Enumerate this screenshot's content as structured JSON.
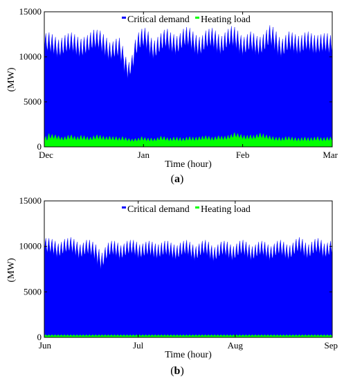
{
  "chart_data": [
    {
      "type": "area",
      "caption_open": "(",
      "caption_letter": "a",
      "caption_close": ")",
      "xlabel": "Time (hour)",
      "ylabel": "(MW)",
      "ylim": [
        0,
        15000
      ],
      "yticks": [
        0,
        5000,
        10000,
        15000
      ],
      "ytick_labels": [
        "0",
        "5000",
        "10000",
        "15000"
      ],
      "xlim": [
        0,
        2160
      ],
      "xticks": [
        0,
        744,
        1488,
        2160
      ],
      "xtick_labels": [
        "Dec",
        "Jan",
        "Feb",
        "Mar"
      ],
      "grid": false,
      "legend_placement": "top-center",
      "series": [
        {
          "name": "Critical demand",
          "color": "#0000ff",
          "daily_peak": [
            12600,
            12700,
            12500,
            12200,
            11900,
            12100,
            12400,
            12600,
            12700,
            12500,
            12200,
            12000,
            12200,
            12400,
            12700,
            13000,
            13000,
            12900,
            12500,
            12100,
            11600,
            11700,
            12000,
            12100,
            11200,
            10000,
            9400,
            10200,
            11900,
            12700,
            13100,
            13200,
            12800,
            12100,
            11800,
            12200,
            12600,
            13000,
            13100,
            12700,
            12500,
            12300,
            12600,
            13100,
            13300,
            13200,
            12800,
            12400,
            12200,
            12400,
            12900,
            13100,
            13200,
            12900,
            12500,
            12300,
            12700,
            13100,
            13400,
            13300,
            12900,
            12400,
            12200,
            12500,
            12800,
            12600,
            12300,
            12200,
            12500,
            13000,
            13500,
            13300,
            12800,
            12200,
            12000,
            12400,
            12800,
            12700,
            12500,
            12300,
            12400,
            12700,
            12800,
            12600,
            12400,
            12400,
            12500,
            12600,
            12600,
            12400
          ],
          "daily_trough": [
            10500,
            10600,
            10400,
            10200,
            9900,
            10000,
            10300,
            10500,
            10600,
            10400,
            10100,
            9900,
            10100,
            10300,
            10600,
            10900,
            10900,
            10800,
            10400,
            10000,
            9600,
            9700,
            9900,
            10000,
            9200,
            8200,
            7500,
            8300,
            9800,
            10600,
            11000,
            11100,
            10700,
            10000,
            9700,
            10100,
            10500,
            10900,
            11000,
            10600,
            10400,
            10200,
            10500,
            11000,
            11200,
            11100,
            10700,
            10300,
            10100,
            10300,
            10800,
            11000,
            11100,
            10800,
            10400,
            10200,
            10600,
            11000,
            11200,
            11100,
            10800,
            10300,
            10100,
            10400,
            10700,
            10500,
            10200,
            10100,
            10400,
            10800,
            11300,
            11100,
            10600,
            10100,
            9900,
            10300,
            10700,
            10600,
            10400,
            10200,
            10300,
            10600,
            10700,
            10500,
            10300,
            10300,
            10400,
            10500,
            10500,
            10300
          ]
        },
        {
          "name": "Heating load",
          "color": "#00ff00",
          "daily_peak": [
            1200,
            1500,
            1400,
            1350,
            1250,
            1100,
            1150,
            1300,
            1350,
            1200,
            1150,
            1300,
            1250,
            1150,
            1100,
            1250,
            1350,
            1300,
            1200,
            1150,
            1200,
            1150,
            1150,
            1050,
            1150,
            1050,
            950,
            900,
            950,
            1000,
            1150,
            1050,
            1000,
            1000,
            950,
            1050,
            1200,
            1150,
            1050,
            1000,
            1100,
            1100,
            1050,
            1000,
            1100,
            1150,
            1100,
            1100,
            1150,
            1200,
            1250,
            1200,
            1100,
            1150,
            1250,
            1200,
            1200,
            1300,
            1400,
            1600,
            1500,
            1400,
            1300,
            1300,
            1350,
            1300,
            1400,
            1550,
            1450,
            1350,
            1250,
            1150,
            1100,
            1100,
            1050,
            1150,
            1150,
            1100,
            1050,
            1000,
            1050,
            1100,
            1050,
            1050,
            1100,
            1150,
            1050,
            1050,
            1100,
            1100
          ],
          "daily_trough": [
            500,
            800,
            900,
            850,
            800,
            700,
            700,
            800,
            850,
            750,
            700,
            800,
            750,
            700,
            700,
            750,
            850,
            800,
            750,
            700,
            750,
            700,
            700,
            650,
            700,
            650,
            600,
            550,
            600,
            600,
            700,
            650,
            600,
            600,
            600,
            650,
            750,
            700,
            650,
            600,
            650,
            650,
            600,
            600,
            650,
            700,
            650,
            650,
            700,
            750,
            800,
            750,
            650,
            700,
            800,
            750,
            750,
            800,
            900,
            1050,
            1000,
            900,
            800,
            800,
            850,
            800,
            900,
            1000,
            900,
            850,
            800,
            700,
            650,
            650,
            600,
            700,
            700,
            650,
            600,
            600,
            600,
            650,
            600,
            600,
            650,
            700,
            600,
            600,
            650,
            650
          ]
        }
      ]
    },
    {
      "type": "area",
      "caption_open": "(",
      "caption_letter": "b",
      "caption_close": ")",
      "xlabel": "Time (hour)",
      "ylabel": "(MW)",
      "ylim": [
        0,
        15000
      ],
      "yticks": [
        0,
        5000,
        10000,
        15000
      ],
      "ytick_labels": [
        "0",
        "5000",
        "10000",
        "15000"
      ],
      "xlim": [
        0,
        2208
      ],
      "xticks": [
        0,
        720,
        1464,
        2208
      ],
      "xtick_labels": [
        "Jun",
        "Jul",
        "Aug",
        "Sep"
      ],
      "grid": false,
      "legend_placement": "top-center",
      "series": [
        {
          "name": "Critical demand",
          "color": "#0000ff",
          "daily_peak": [
            10900,
            10900,
            10800,
            10600,
            10300,
            10500,
            10800,
            10900,
            11000,
            10800,
            10500,
            10200,
            10400,
            10700,
            10700,
            10500,
            10200,
            9700,
            9300,
            9900,
            10400,
            10600,
            10600,
            10400,
            10100,
            10300,
            10600,
            10700,
            10700,
            10500,
            10200,
            10300,
            10500,
            10600,
            10500,
            10300,
            10200,
            10400,
            10600,
            10600,
            10400,
            10200,
            10100,
            10400,
            10600,
            10700,
            10500,
            10200,
            10000,
            10300,
            10600,
            10700,
            10500,
            10100,
            9900,
            10200,
            10500,
            10600,
            10500,
            10200,
            10000,
            10300,
            10600,
            10700,
            10500,
            10200,
            10000,
            10200,
            10500,
            10600,
            10500,
            10200,
            10000,
            10300,
            10600,
            10700,
            10500,
            10200,
            10100,
            10400,
            10800,
            11000,
            10800,
            10400,
            10200,
            10500,
            10800,
            10900,
            10700,
            10300,
            10400,
            10600
          ],
          "daily_trough": [
            9200,
            9300,
            9200,
            9000,
            8700,
            8900,
            9200,
            9300,
            9400,
            9200,
            8900,
            8600,
            8800,
            9100,
            9100,
            8900,
            8500,
            7900,
            7400,
            8200,
            8800,
            9000,
            9000,
            8800,
            8500,
            8700,
            9000,
            9100,
            9100,
            8900,
            8600,
            8700,
            8900,
            9000,
            8900,
            8700,
            8600,
            8800,
            9000,
            9000,
            8800,
            8600,
            8500,
            8800,
            9000,
            9100,
            8900,
            8600,
            8400,
            8700,
            9000,
            9100,
            8900,
            8500,
            8300,
            8600,
            8900,
            9000,
            8900,
            8600,
            8400,
            8700,
            9000,
            9100,
            8900,
            8600,
            8400,
            8600,
            8900,
            9000,
            8900,
            8600,
            8400,
            8700,
            9000,
            9100,
            8900,
            8600,
            8500,
            8800,
            9200,
            9400,
            9200,
            8800,
            8600,
            8900,
            9200,
            9300,
            9100,
            8700,
            8800,
            9000
          ]
        },
        {
          "name": "Heating load",
          "color": "#00ff00",
          "daily_peak": [
            300,
            300,
            300,
            300,
            300,
            300,
            300,
            300,
            300,
            300,
            300,
            300,
            300,
            300,
            300,
            300,
            300,
            300,
            300,
            300,
            300,
            300,
            300,
            300,
            300,
            300,
            300,
            300,
            300,
            300,
            300,
            300,
            300,
            300,
            300,
            300,
            300,
            300,
            300,
            300,
            300,
            300,
            300,
            300,
            300,
            300,
            300,
            300,
            300,
            300,
            300,
            300,
            300,
            300,
            300,
            300,
            300,
            300,
            300,
            300,
            300,
            300,
            300,
            300,
            300,
            300,
            300,
            300,
            300,
            300,
            300,
            300,
            300,
            300,
            300,
            300,
            300,
            300,
            300,
            300,
            300,
            300,
            300,
            300,
            300,
            300,
            300,
            300,
            300,
            300,
            300,
            300
          ],
          "daily_trough": [
            150,
            150,
            150,
            150,
            150,
            150,
            150,
            150,
            150,
            150,
            150,
            150,
            150,
            150,
            150,
            150,
            150,
            150,
            150,
            150,
            150,
            150,
            150,
            150,
            150,
            150,
            150,
            150,
            150,
            150,
            150,
            150,
            150,
            150,
            150,
            150,
            150,
            150,
            150,
            150,
            150,
            150,
            150,
            150,
            150,
            150,
            150,
            150,
            150,
            150,
            150,
            150,
            150,
            150,
            150,
            150,
            150,
            150,
            150,
            150,
            150,
            150,
            150,
            150,
            150,
            150,
            150,
            150,
            150,
            150,
            150,
            150,
            150,
            150,
            150,
            150,
            150,
            150,
            150,
            150,
            150,
            150,
            150,
            150,
            150,
            150,
            150,
            150,
            150,
            150,
            150,
            150
          ]
        }
      ]
    }
  ]
}
